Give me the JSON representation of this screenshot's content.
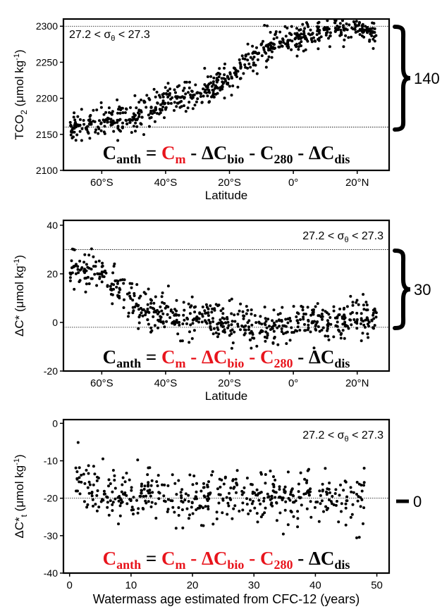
{
  "colors": {
    "black": "#000000",
    "red": "#e8141c"
  },
  "chart_data": [
    {
      "type": "scatter",
      "ylabel_main": "TCO",
      "ylabel_sub": "2",
      "ylabel_unit": "(μmol kg",
      "ylabel_exp": "-1",
      "ylabel_close": ")",
      "xlabel": "Latitude",
      "ylim": [
        2100,
        2310
      ],
      "xlim": [
        -72,
        30
      ],
      "yticks": [
        "2100",
        "2150",
        "2200",
        "2250",
        "2300"
      ],
      "ytick_values": [
        2100,
        2150,
        2200,
        2250,
        2300
      ],
      "xticks": [
        "60°S",
        "40°S",
        "20°S",
        "0°",
        "20°N"
      ],
      "xtick_values": [
        -60,
        -40,
        -20,
        0,
        20
      ],
      "reference_lines": [
        2300,
        2160
      ],
      "annotation": "27.2 < σθ < 27.3",
      "range_label": "140",
      "equation_red_terms": [
        "Cm"
      ],
      "grid": false,
      "points_trend": [
        [
          -70,
          2160
        ],
        [
          -60,
          2165
        ],
        [
          -50,
          2175
        ],
        [
          -40,
          2195
        ],
        [
          -30,
          2205
        ],
        [
          -20,
          2225
        ],
        [
          -10,
          2270
        ],
        [
          0,
          2285
        ],
        [
          10,
          2295
        ],
        [
          20,
          2298
        ],
        [
          25,
          2292
        ]
      ],
      "scatter_spread": 10,
      "point_count": 700
    },
    {
      "type": "scatter",
      "ylabel_main": "ΔC*",
      "ylabel_unit": "(μmol kg",
      "ylabel_exp": "-1",
      "ylabel_close": ")",
      "xlabel": "Latitude",
      "ylim": [
        -20,
        42
      ],
      "xlim": [
        -72,
        30
      ],
      "yticks": [
        "-20",
        "0",
        "20",
        "40"
      ],
      "ytick_values": [
        -20,
        0,
        20,
        40
      ],
      "xticks": [
        "60°S",
        "40°S",
        "20°S",
        "0°",
        "20°N"
      ],
      "xtick_values": [
        -60,
        -40,
        -20,
        0,
        20
      ],
      "reference_lines": [
        30,
        -2
      ],
      "annotation": "27.2 < σθ < 27.3",
      "range_label": "30",
      "equation_red_terms": [
        "Cm",
        "ΔCbio",
        "C280"
      ],
      "grid": false,
      "points_trend": [
        [
          -70,
          22
        ],
        [
          -65,
          22
        ],
        [
          -60,
          20
        ],
        [
          -55,
          15
        ],
        [
          -50,
          8
        ],
        [
          -45,
          4
        ],
        [
          -40,
          3
        ],
        [
          -30,
          2
        ],
        [
          -20,
          0
        ],
        [
          -10,
          -2
        ],
        [
          0,
          0
        ],
        [
          10,
          1
        ],
        [
          20,
          2
        ],
        [
          25,
          2
        ]
      ],
      "scatter_spread": 4,
      "point_count": 600
    },
    {
      "type": "scatter",
      "ylabel_main": "ΔC*",
      "ylabel_sub": "t",
      "ylabel_unit": "(μmol kg",
      "ylabel_exp": "-1",
      "ylabel_close": ")",
      "xlabel": "Watermass age estimated from CFC-12 (years)",
      "ylim": [
        -40,
        1
      ],
      "xlim": [
        -1,
        52
      ],
      "yticks": [
        "-40",
        "-30",
        "-20",
        "-10",
        "0"
      ],
      "ytick_values": [
        -40,
        -30,
        -20,
        -10,
        0
      ],
      "xticks": [
        "0",
        "10",
        "20",
        "30",
        "40",
        "50"
      ],
      "xtick_values": [
        0,
        10,
        20,
        30,
        40,
        50
      ],
      "reference_lines": [
        -20
      ],
      "annotation": "27.2 < σθ < 27.3",
      "range_label": "0",
      "equation_red_terms": [
        "Canth",
        "Cm",
        "ΔCbio",
        "C280"
      ],
      "grid": false,
      "points_trend": [
        [
          0,
          -12
        ],
        [
          5,
          -20
        ],
        [
          10,
          -19
        ],
        [
          20,
          -20
        ],
        [
          30,
          -20
        ],
        [
          40,
          -20
        ],
        [
          50,
          -21
        ]
      ],
      "scatter_spread": 3.5,
      "point_count": 450
    }
  ],
  "equation": {
    "C": "C",
    "anth": "anth",
    "eq": "=",
    "m": "m",
    "minus": "-",
    "dC": "ΔC",
    "bio": "bio",
    "c280": "280",
    "dis": "dis"
  }
}
